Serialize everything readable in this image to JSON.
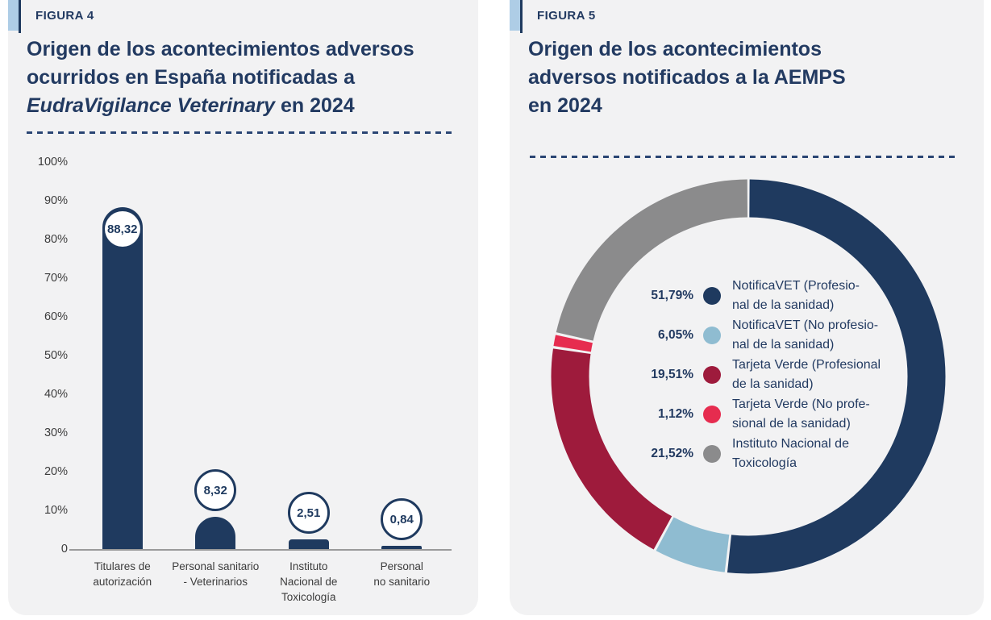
{
  "colors": {
    "navy": "#1F3A5F",
    "title_navy": "#223A61",
    "light_blue": "#8FBCD1",
    "dark_red": "#9E1B3C",
    "bright_red": "#E62C4F",
    "gray": "#8B8B8C",
    "stripe_blue": "#AECDE6",
    "card_bg": "#F2F2F3",
    "axis_text": "#3C3C3C",
    "axis_line": "#9A9A9A"
  },
  "figure4": {
    "tag": "FIGURA 4",
    "title_line1": "Origen de los acontecimientos adversos",
    "title_line2": "ocurridos en España notificadas a",
    "title_line3_italic": "EudraVigilance Veterinary",
    "title_line3_rest": " en 2024"
  },
  "figure5": {
    "tag": "FIGURA 5",
    "title_line1": "Origen de los acontecimientos",
    "title_line2": "adversos notificados a la AEMPS",
    "title_line3": "en 2024"
  },
  "chart_data": [
    {
      "type": "bar",
      "title": "Origen de los acontecimientos adversos ocurridos en España notificadas a EudraVigilance Veterinary en 2024",
      "categories": [
        "Titulares de\nautorización",
        "Personal sanitario\n- Veterinarios",
        "Instituto\nNacional de\nToxicología",
        "Personal\nno sanitario"
      ],
      "values": [
        88.32,
        8.32,
        2.51,
        0.84
      ],
      "value_labels": [
        "88,32",
        "8,32",
        "2,51",
        "0,84"
      ],
      "y_ticks": [
        "100%",
        "90%",
        "80%",
        "70%",
        "60%",
        "50%",
        "40%",
        "30%",
        "20%",
        "10%",
        "0"
      ],
      "ylim": [
        0,
        100
      ],
      "xlabel": "",
      "ylabel": "",
      "grid": false,
      "bar_color": "#1F3A5F"
    },
    {
      "type": "pie",
      "subtype": "donut",
      "title": "Origen de los acontecimientos adversos notificados a la AEMPS en 2024",
      "start_angle_deg": 0,
      "direction": "clockwise",
      "legend_position": "center",
      "segments": [
        {
          "pct_label": "51,79%",
          "value": 51.79,
          "color": "#1F3A5F",
          "label": "NotificaVET (Profesio-\nnal de la sanidad)"
        },
        {
          "pct_label": "6,05%",
          "value": 6.05,
          "color": "#8FBCD1",
          "label": "NotificaVET (No profesio-\nnal de la sanidad)"
        },
        {
          "pct_label": "19,51%",
          "value": 19.51,
          "color": "#9E1B3C",
          "label": "Tarjeta Verde (Profesional\nde la sanidad)"
        },
        {
          "pct_label": "1,12%",
          "value": 1.12,
          "color": "#E62C4F",
          "label": "Tarjeta Verde (No profe-\nsional de la sanidad)"
        },
        {
          "pct_label": "21,52%",
          "value": 21.52,
          "color": "#8B8B8C",
          "label": "Instituto Nacional de\nToxicología"
        }
      ]
    }
  ]
}
